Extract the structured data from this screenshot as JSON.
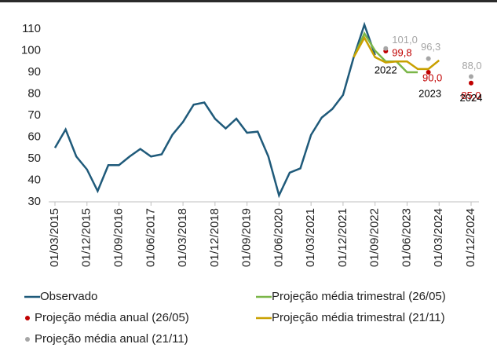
{
  "chart_data": {
    "type": "line",
    "categories": [
      "01/03/2015",
      null,
      null,
      "01/12/2015",
      null,
      null,
      "01/09/2016",
      null,
      null,
      "01/06/2017",
      null,
      null,
      "01/03/2018",
      null,
      null,
      "01/12/2018",
      null,
      null,
      "01/09/2019",
      null,
      null,
      "01/06/2020",
      null,
      null,
      "01/03/2021",
      null,
      null,
      "01/12/2021",
      null,
      null,
      "01/09/2022",
      null,
      null,
      "01/06/2023",
      null,
      null,
      "01/03/2024",
      null,
      null,
      "01/12/2024"
    ],
    "series": [
      {
        "name": "Observado",
        "kind": "line",
        "color": "#1f5a7a",
        "values": [
          55,
          63.5,
          51,
          45,
          35,
          47,
          47,
          51,
          54.5,
          51,
          52,
          61,
          67,
          75,
          76,
          68.5,
          64,
          68.5,
          62,
          62.5,
          51,
          33,
          43.5,
          45.5,
          61,
          69,
          73,
          79.5,
          97,
          112,
          98,
          null,
          null,
          null,
          null,
          null,
          null,
          null,
          null,
          null
        ]
      },
      {
        "name": "Projeção média trimestral (26/05)",
        "kind": "line",
        "color": "#7ab648",
        "values": [
          null,
          null,
          null,
          null,
          null,
          null,
          null,
          null,
          null,
          null,
          null,
          null,
          null,
          null,
          null,
          null,
          null,
          null,
          null,
          null,
          null,
          null,
          null,
          null,
          null,
          null,
          null,
          null,
          97,
          108,
          100,
          95,
          95,
          90,
          90,
          null,
          null,
          null,
          null,
          null
        ]
      },
      {
        "name": "Projeção média anual (26/05)",
        "kind": "point",
        "color": "#c00000",
        "values": [
          null,
          null,
          null,
          null,
          null,
          null,
          null,
          null,
          null,
          null,
          null,
          null,
          null,
          null,
          null,
          null,
          null,
          null,
          null,
          null,
          null,
          null,
          null,
          null,
          null,
          null,
          null,
          null,
          null,
          null,
          null,
          99.8,
          null,
          null,
          null,
          90.0,
          null,
          null,
          null,
          85.0
        ],
        "value_labels": [
          null,
          null,
          null,
          null,
          null,
          null,
          null,
          null,
          null,
          null,
          null,
          null,
          null,
          null,
          null,
          null,
          null,
          null,
          null,
          null,
          null,
          null,
          null,
          null,
          null,
          null,
          null,
          null,
          null,
          null,
          null,
          "99,8",
          null,
          null,
          null,
          "90,0",
          null,
          null,
          null,
          "85,0"
        ]
      },
      {
        "name": "Projeção média trimestral (21/11)",
        "kind": "line",
        "color": "#c9a000",
        "values": [
          null,
          null,
          null,
          null,
          null,
          null,
          null,
          null,
          null,
          null,
          null,
          null,
          null,
          null,
          null,
          null,
          null,
          null,
          null,
          null,
          null,
          null,
          null,
          null,
          null,
          null,
          null,
          null,
          97,
          106,
          97,
          94.5,
          95,
          95,
          91.5,
          91.5,
          95.5,
          null,
          null,
          null
        ]
      },
      {
        "name": "Projeção média anual (21/11)",
        "kind": "point",
        "color": "#a6a6a6",
        "values": [
          null,
          null,
          null,
          null,
          null,
          null,
          null,
          null,
          null,
          null,
          null,
          null,
          null,
          null,
          null,
          null,
          null,
          null,
          null,
          null,
          null,
          null,
          null,
          null,
          null,
          null,
          null,
          null,
          null,
          null,
          null,
          101.0,
          null,
          null,
          null,
          96.3,
          null,
          null,
          null,
          88.0
        ],
        "value_labels": [
          null,
          null,
          null,
          null,
          null,
          null,
          null,
          null,
          null,
          null,
          null,
          null,
          null,
          null,
          null,
          null,
          null,
          null,
          null,
          null,
          null,
          null,
          null,
          null,
          null,
          null,
          null,
          null,
          null,
          null,
          null,
          "101,0",
          null,
          null,
          null,
          "96,3",
          null,
          null,
          null,
          "88,0"
        ]
      }
    ],
    "annotations": [
      "2022",
      "2023",
      "2024"
    ],
    "ylim": [
      30,
      115
    ],
    "yticks": [
      30,
      40,
      50,
      60,
      70,
      80,
      90,
      100,
      110
    ],
    "grid": false
  }
}
